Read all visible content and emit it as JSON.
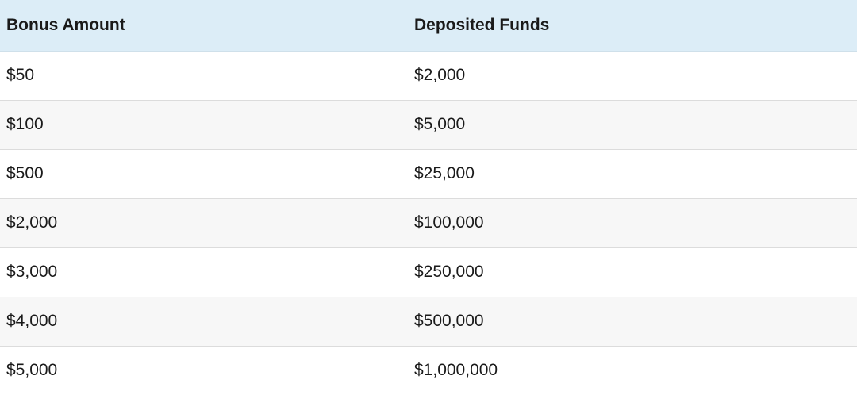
{
  "table": {
    "headers": [
      "Bonus Amount",
      "Deposited Funds"
    ],
    "rows": [
      [
        "$50",
        "$2,000"
      ],
      [
        "$100",
        "$5,000"
      ],
      [
        "$500",
        "$25,000"
      ],
      [
        "$2,000",
        "$100,000"
      ],
      [
        "$3,000",
        "$250,000"
      ],
      [
        "$4,000",
        "$500,000"
      ],
      [
        "$5,000",
        "$1,000,000"
      ]
    ]
  }
}
